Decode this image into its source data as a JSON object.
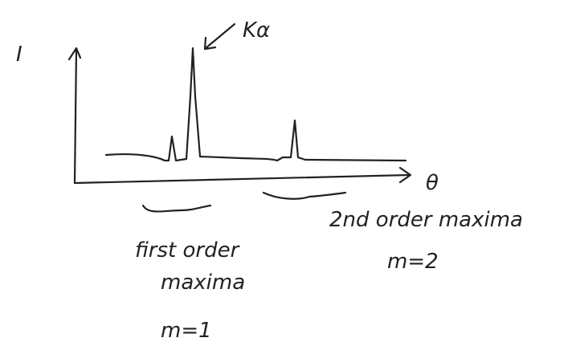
{
  "labels": {
    "y_axis": "I",
    "x_axis": "θ",
    "peak": "Kα"
  },
  "annotations": [
    {
      "title": "first order",
      "subtitle": "maxima",
      "order": "m=1"
    },
    {
      "title": "2nd order maxima",
      "order": "m=2"
    }
  ]
}
